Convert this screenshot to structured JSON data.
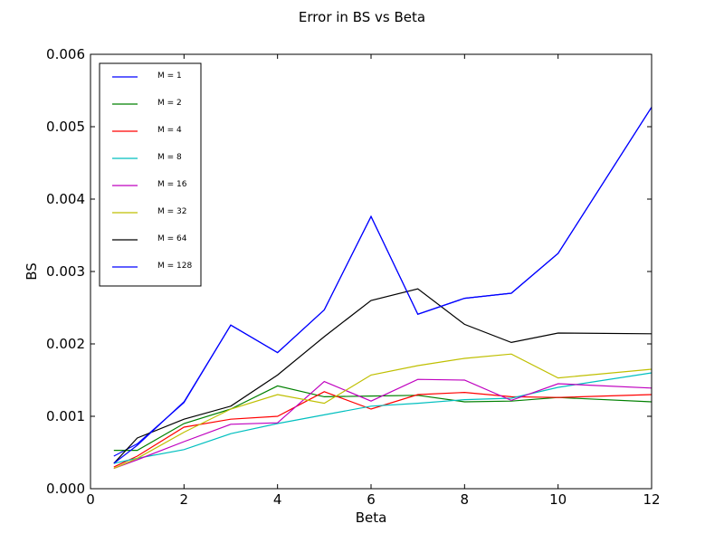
{
  "chart_data": {
    "type": "line",
    "title": "Error in BS vs Beta",
    "xlabel": "Beta",
    "ylabel": "BS",
    "xlim": [
      0,
      12
    ],
    "ylim": [
      0,
      0.006
    ],
    "xticks": [
      0,
      2,
      4,
      6,
      8,
      10,
      12
    ],
    "yticks": [
      0.0,
      0.001,
      0.002,
      0.003,
      0.004,
      0.005,
      0.006
    ],
    "xtick_labels": [
      "0",
      "2",
      "4",
      "6",
      "8",
      "10",
      "12"
    ],
    "ytick_labels": [
      "0.000",
      "0.001",
      "0.002",
      "0.003",
      "0.004",
      "0.005",
      "0.006"
    ],
    "grid": false,
    "legend_position": "top-left",
    "x": [
      0.5,
      1,
      2,
      3,
      4,
      5,
      6,
      7,
      8,
      9,
      10,
      12
    ],
    "series": [
      {
        "name": "M = 1",
        "color": "#0000ff",
        "values": [
          0.00045,
          0.00062,
          0.00119,
          0.00226,
          0.00188,
          0.00247,
          0.00376,
          0.00241,
          0.00263,
          0.0027,
          0.00325,
          0.00527
        ]
      },
      {
        "name": "M = 2",
        "color": "#008000",
        "values": [
          0.00053,
          0.00053,
          0.0009,
          0.0011,
          0.00142,
          0.00127,
          0.00128,
          0.00129,
          0.0012,
          0.00121,
          0.00126,
          0.0012
        ]
      },
      {
        "name": "M = 4",
        "color": "#ff0000",
        "values": [
          0.0003,
          0.00045,
          0.00085,
          0.00096,
          0.001,
          0.00134,
          0.0011,
          0.0013,
          0.00133,
          0.00127,
          0.00126,
          0.0013
        ]
      },
      {
        "name": "M = 8",
        "color": "#00bfbf",
        "values": [
          0.00035,
          0.00042,
          0.00054,
          0.00076,
          0.0009,
          0.00102,
          0.00114,
          0.00118,
          0.00123,
          0.00125,
          0.0014,
          0.0016
        ]
      },
      {
        "name": "M = 16",
        "color": "#bf00bf",
        "values": [
          0.00028,
          0.0004,
          0.00065,
          0.00089,
          0.00091,
          0.00148,
          0.00121,
          0.00151,
          0.0015,
          0.00122,
          0.00145,
          0.00139
        ]
      },
      {
        "name": "M = 32",
        "color": "#bfbf00",
        "values": [
          0.00028,
          0.00042,
          0.00078,
          0.0011,
          0.0013,
          0.00118,
          0.00157,
          0.0017,
          0.0018,
          0.00186,
          0.00153,
          0.00165
        ]
      },
      {
        "name": "M = 64",
        "color": "#000000",
        "values": [
          0.00035,
          0.0007,
          0.00096,
          0.00114,
          0.00157,
          0.0021,
          0.0026,
          0.00276,
          0.00227,
          0.00202,
          0.00215,
          0.00214
        ]
      },
      {
        "name": "M = 128",
        "color": "#0000ff",
        "values": [
          0.00035,
          0.0006,
          0.0012,
          0.00226,
          0.00188,
          0.00247,
          0.00376,
          0.00241,
          0.00263,
          0.0027,
          0.00325,
          0.00527
        ]
      }
    ]
  }
}
